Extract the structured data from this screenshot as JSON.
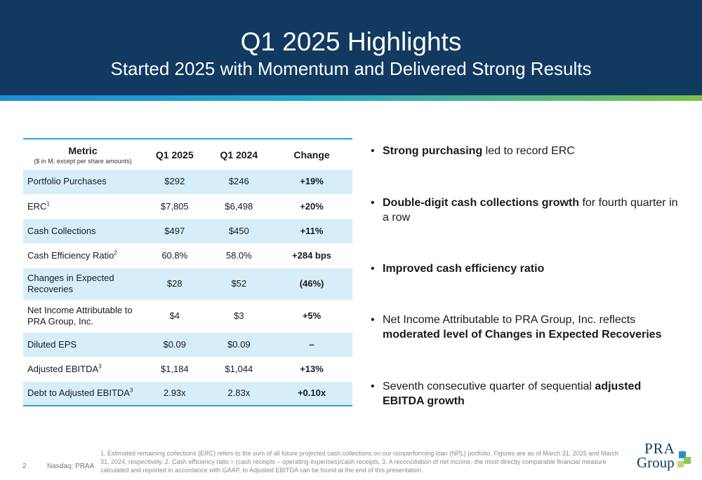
{
  "header": {
    "title": "Q1 2025 Highlights",
    "subtitle": "Started 2025 with Momentum and Delivered Strong Results"
  },
  "table": {
    "headers": {
      "metric": "Metric",
      "metric_sub": "($ in M, except per share amounts)",
      "q1_2025": "Q1 2025",
      "q1_2024": "Q1 2024",
      "change": "Change"
    },
    "rows": [
      {
        "metric": "Portfolio Purchases",
        "sup": "",
        "q1_2025": "$292",
        "q1_2024": "$246",
        "change": "+19%"
      },
      {
        "metric": "ERC",
        "sup": "1",
        "q1_2025": "$7,805",
        "q1_2024": "$6,498",
        "change": "+20%"
      },
      {
        "metric": "Cash Collections",
        "sup": "",
        "q1_2025": "$497",
        "q1_2024": "$450",
        "change": "+11%"
      },
      {
        "metric": "Cash Efficiency Ratio",
        "sup": "2",
        "q1_2025": "60.8%",
        "q1_2024": "58.0%",
        "change": "+284 bps"
      },
      {
        "metric": "Changes in Expected Recoveries",
        "sup": "",
        "q1_2025": "$28",
        "q1_2024": "$52",
        "change": "(46%)"
      },
      {
        "metric": "Net Income Attributable to PRA Group, Inc.",
        "sup": "",
        "q1_2025": "$4",
        "q1_2024": "$3",
        "change": "+5%"
      },
      {
        "metric": "Diluted EPS",
        "sup": "",
        "q1_2025": "$0.09",
        "q1_2024": "$0.09",
        "change": "–"
      },
      {
        "metric": "Adjusted EBITDA",
        "sup": "3",
        "q1_2025": "$1,184",
        "q1_2024": "$1,044",
        "change": "+13%"
      },
      {
        "metric": "Debt to Adjusted EBITDA",
        "sup": "3",
        "q1_2025": "2.93x",
        "q1_2024": "2.83x",
        "change": "+0.10x"
      }
    ]
  },
  "bullets": [
    {
      "bold": "Strong purchasing",
      "rest": " led to record ERC"
    },
    {
      "bold": "Double-digit cash collections growth",
      "rest": " for fourth quarter in a row"
    },
    {
      "bold": "Improved cash efficiency ratio",
      "rest": ""
    },
    {
      "pre": "Net Income Attributable to PRA Group, Inc. reflects ",
      "bold": "moderated level of Changes in Expected Recoveries"
    },
    {
      "pre": "Seventh consecutive quarter of sequential ",
      "bold": "adjusted EBITDA growth"
    }
  ],
  "footer": {
    "page_number": "2",
    "nasdaq": "Nasdaq: PRAA",
    "footnote": "1. Estimated remaining collections (ERC) refers to the sum of all future projected cash collections on our nonperforming loan (NPL) portfolio. Figures are as of March 31, 2025 and March 31, 2024, respectively. 2. Cash efficiency ratio = (cash receipts – operating expenses)/cash receipts. 3. A reconciliation of net income, the most directly comparable financial measure calculated and reported in accordance with GAAP, to Adjusted EBITDA can be found at the end of this presentation.",
    "logo_line1": "PRA",
    "logo_line2": "Group"
  },
  "colors": {
    "header_bg": "#123a61",
    "row_shade": "#d6eef9",
    "rule": "#2aa3d6",
    "logo_blue": "#2a8fd0",
    "logo_green": "#7cc24a"
  }
}
